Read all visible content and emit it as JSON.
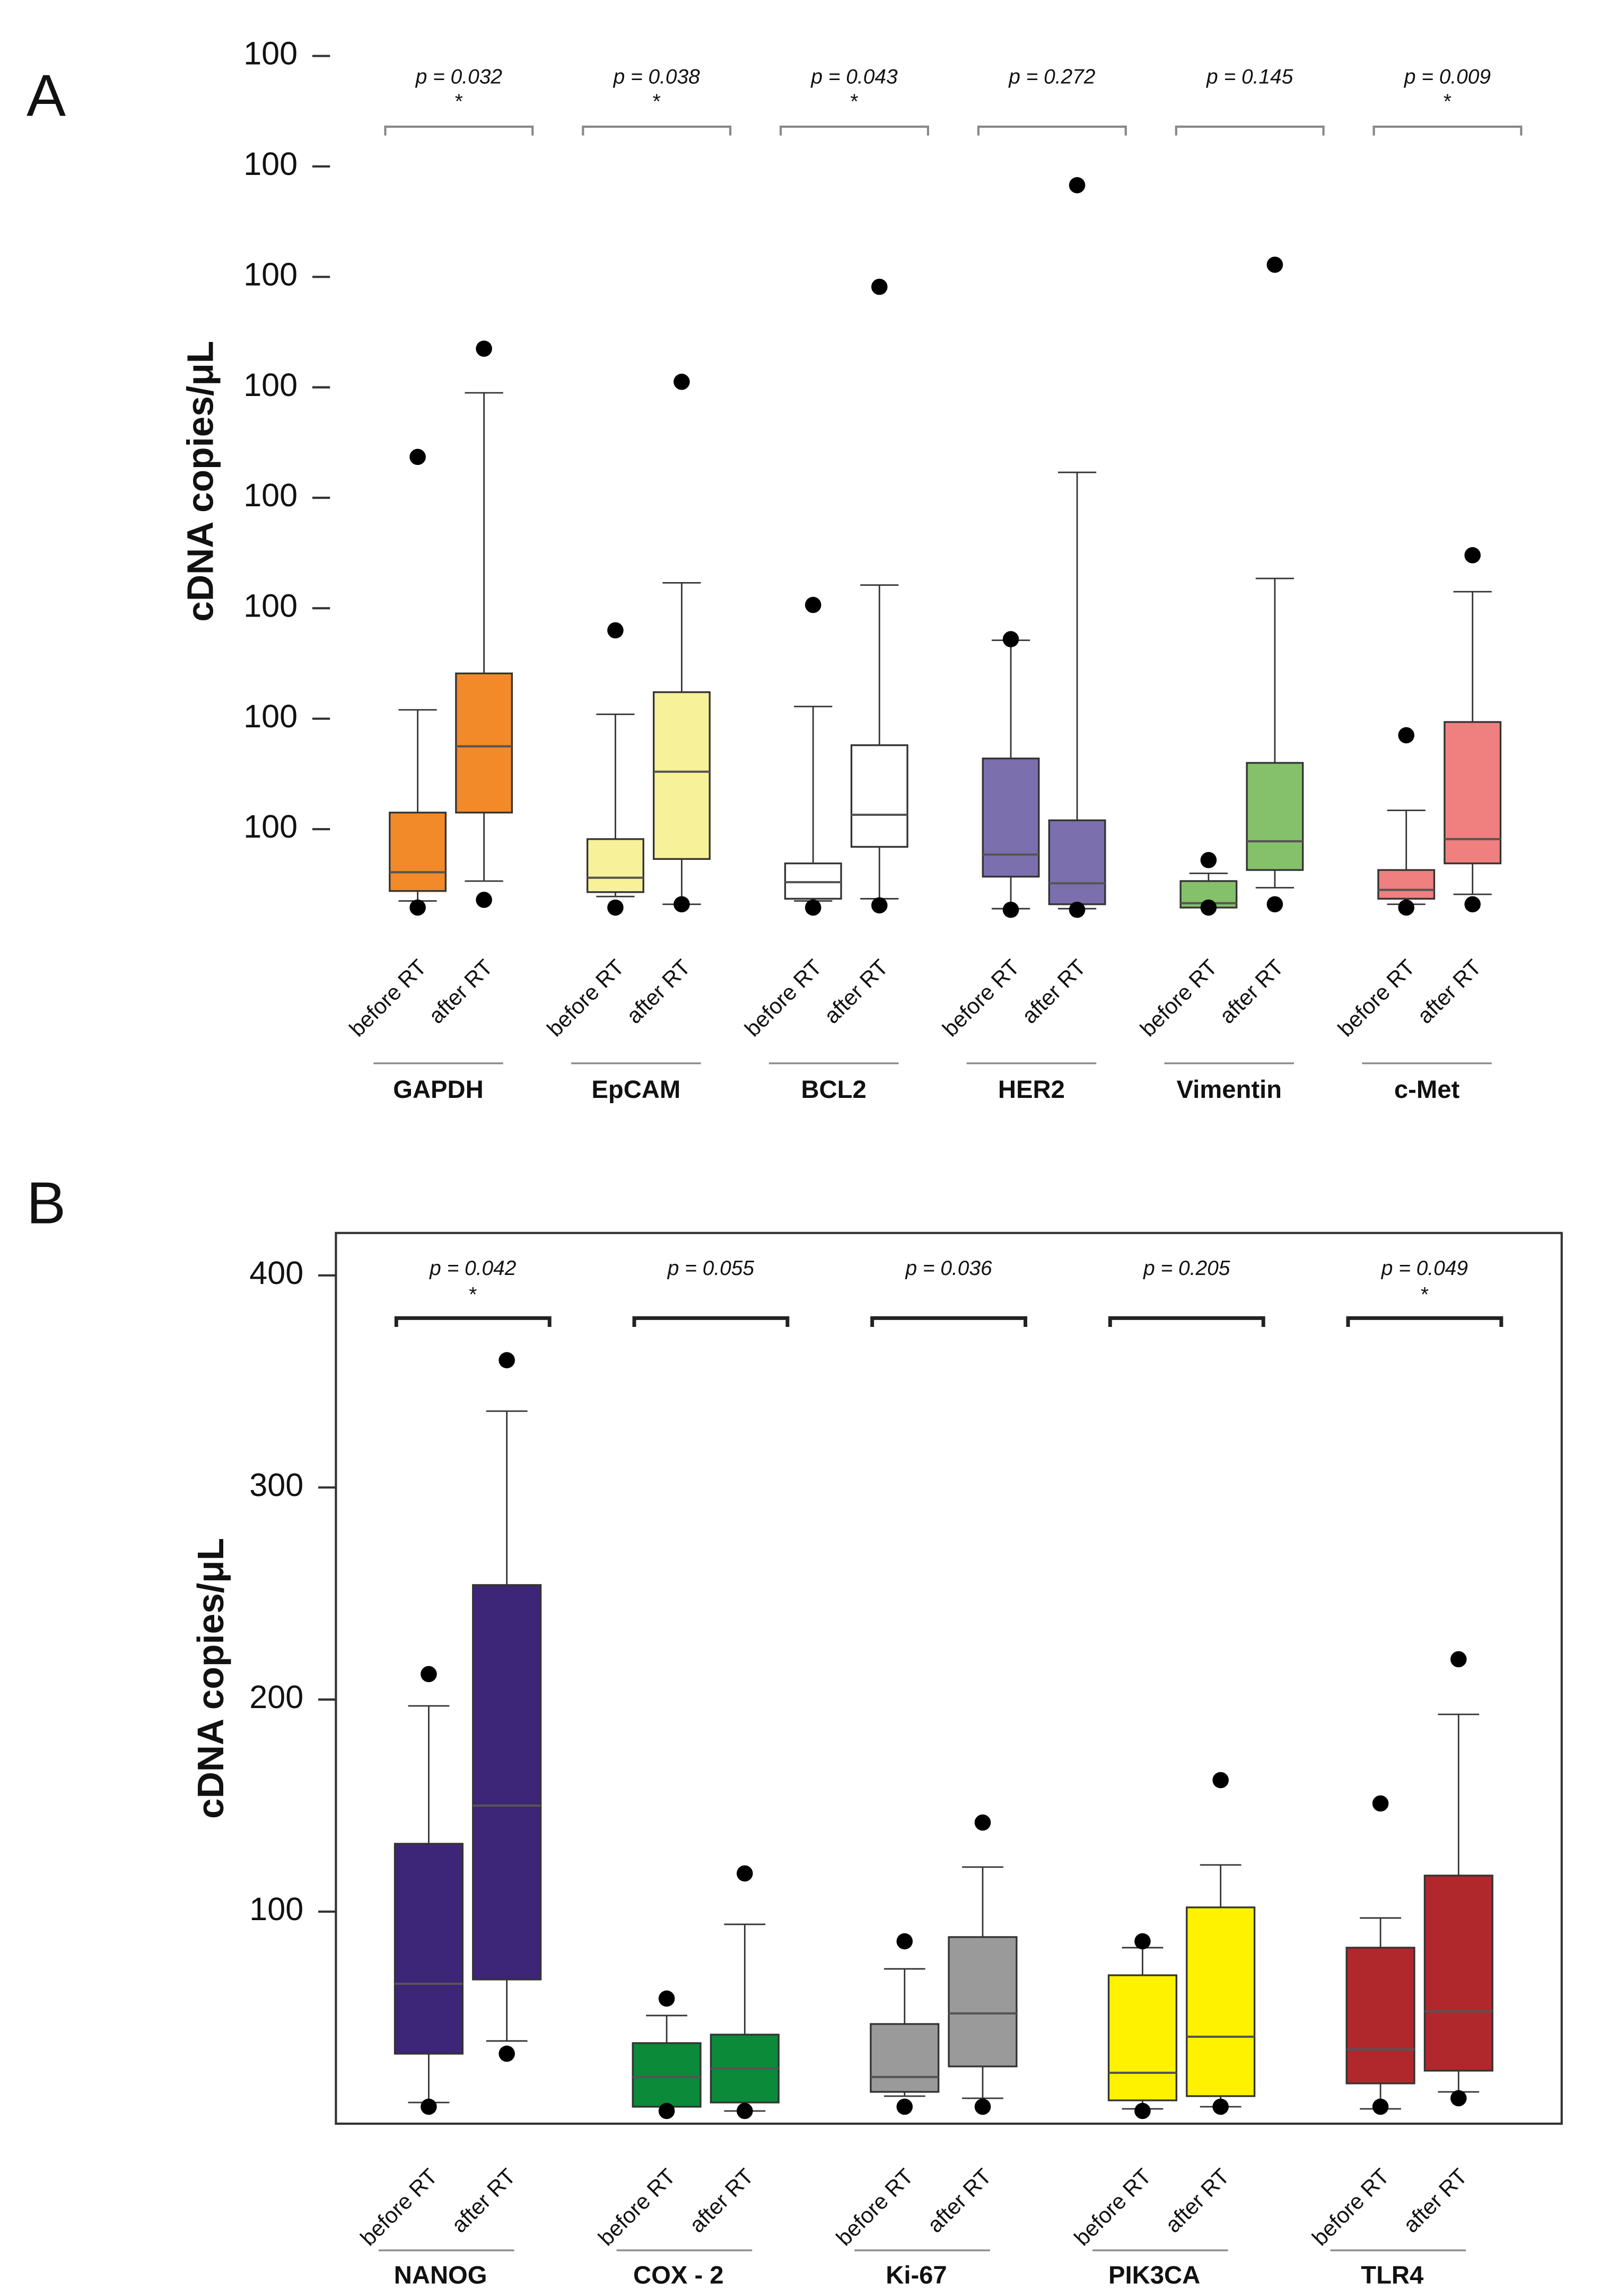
{
  "chart_data": [
    {
      "type": "box",
      "panel": "A",
      "y_label": "cDNA copies/μL",
      "ylim": [
        0.2,
        8.1
      ],
      "yticks": [
        {
          "value": 1,
          "label": "100"
        },
        {
          "value": 2,
          "label": "100"
        },
        {
          "value": 3,
          "label": "100"
        },
        {
          "value": 4,
          "label": "100"
        },
        {
          "value": 5,
          "label": "100"
        },
        {
          "value": 6,
          "label": "100"
        },
        {
          "value": 7,
          "label": "100"
        },
        {
          "value": 8,
          "label": "100"
        }
      ],
      "groups": [
        {
          "name": "GAPDH",
          "color": "#f28a2a",
          "p_value": "p = 0.032",
          "significance": "*",
          "boxes": [
            {
              "name": "before RT",
              "whisker_low": 0.35,
              "q1": 0.44,
              "median": 0.61,
              "q3": 1.15,
              "whisker_high": 2.08,
              "outliers": [
                4.37,
                0.29
              ]
            },
            {
              "name": "after RT",
              "whisker_low": 0.53,
              "q1": 1.15,
              "median": 1.75,
              "q3": 2.41,
              "whisker_high": 4.95,
              "outliers": [
                5.35,
                0.36
              ]
            }
          ]
        },
        {
          "name": "EpCAM",
          "color": "#f7f29a",
          "p_value": "p = 0.038",
          "significance": "*",
          "boxes": [
            {
              "name": "before RT",
              "whisker_low": 0.39,
              "q1": 0.43,
              "median": 0.56,
              "q3": 0.91,
              "whisker_high": 2.04,
              "outliers": [
                2.8,
                0.29
              ]
            },
            {
              "name": "after RT",
              "whisker_low": 0.32,
              "q1": 0.73,
              "median": 1.52,
              "q3": 2.24,
              "whisker_high": 3.23,
              "outliers": [
                5.05,
                0.32
              ]
            }
          ]
        },
        {
          "name": "BCL2",
          "color": "#ffffff",
          "p_value": "p = 0.043",
          "significance": "*",
          "boxes": [
            {
              "name": "before RT",
              "whisker_low": 0.35,
              "q1": 0.37,
              "median": 0.52,
              "q3": 0.69,
              "whisker_high": 2.11,
              "outliers": [
                3.03,
                0.29
              ]
            },
            {
              "name": "after RT",
              "whisker_low": 0.37,
              "q1": 0.84,
              "median": 1.13,
              "q3": 1.76,
              "whisker_high": 3.21,
              "outliers": [
                5.91,
                0.31
              ]
            }
          ]
        },
        {
          "name": "HER2",
          "color": "#7b6fad",
          "p_value": "p = 0.272",
          "boxes": [
            {
              "name": "before RT",
              "whisker_low": 0.28,
              "q1": 0.57,
              "median": 0.77,
              "q3": 1.64,
              "whisker_high": 2.71,
              "outliers": [
                2.72,
                0.27
              ]
            },
            {
              "name": "after RT",
              "whisker_low": 0.28,
              "q1": 0.32,
              "median": 0.51,
              "q3": 1.08,
              "whisker_high": 4.23,
              "outliers": [
                6.83,
                0.27
              ]
            }
          ]
        },
        {
          "name": "Vimentin",
          "color": "#85c06a",
          "p_value": "p = 0.145",
          "boxes": [
            {
              "name": "before RT",
              "whisker_low": 0.29,
              "q1": 0.29,
              "median": 0.33,
              "q3": 0.53,
              "whisker_high": 0.6,
              "outliers": [
                0.72,
                0.29
              ]
            },
            {
              "name": "after RT",
              "whisker_low": 0.47,
              "q1": 0.63,
              "median": 0.89,
              "q3": 1.6,
              "whisker_high": 3.27,
              "outliers": [
                6.11,
                0.32
              ]
            }
          ]
        },
        {
          "name": "c-Met",
          "color": "#f08080",
          "p_value": "p = 0.009",
          "significance": "*",
          "boxes": [
            {
              "name": "before RT",
              "whisker_low": 0.32,
              "q1": 0.37,
              "median": 0.45,
              "q3": 0.63,
              "whisker_high": 1.17,
              "outliers": [
                1.85,
                0.29
              ]
            },
            {
              "name": "after RT",
              "whisker_low": 0.41,
              "q1": 0.69,
              "median": 0.91,
              "q3": 1.97,
              "whisker_high": 3.15,
              "outliers": [
                3.48,
                0.32
              ]
            }
          ]
        }
      ]
    },
    {
      "type": "box",
      "panel": "B",
      "y_label": "cDNA copies/μL",
      "ylim": [
        0,
        420
      ],
      "yticks": [
        100,
        200,
        300,
        400
      ],
      "groups": [
        {
          "name": "NANOG",
          "color": "#3d2577",
          "p_value": "p = 0.042",
          "significance": "*",
          "boxes": [
            {
              "name": "before RT",
              "whisker_low": 10,
              "q1": 33,
              "median": 66,
              "q3": 132,
              "whisker_high": 197,
              "outliers": [
                212,
                8
              ]
            },
            {
              "name": "after RT",
              "whisker_low": 39,
              "q1": 68,
              "median": 150,
              "q3": 254,
              "whisker_high": 336,
              "outliers": [
                360,
                33
              ]
            }
          ]
        },
        {
          "name": "COX - 2",
          "color": "#0b8a3a",
          "p_value": "p = 0.055",
          "boxes": [
            {
              "name": "before RT",
              "whisker_low": 8,
              "q1": 8,
              "median": 22,
              "q3": 38,
              "whisker_high": 51,
              "outliers": [
                59,
                6
              ]
            },
            {
              "name": "after RT",
              "whisker_low": 6,
              "q1": 10,
              "median": 26,
              "q3": 42,
              "whisker_high": 94,
              "outliers": [
                118,
                6
              ]
            }
          ]
        },
        {
          "name": "Ki-67",
          "color": "#9a9a9a",
          "p_value": "p = 0.036",
          "boxes": [
            {
              "name": "before RT",
              "whisker_low": 13,
              "q1": 15,
              "median": 22,
              "q3": 47,
              "whisker_high": 73,
              "outliers": [
                86,
                8
              ]
            },
            {
              "name": "after RT",
              "whisker_low": 12,
              "q1": 27,
              "median": 52,
              "q3": 88,
              "whisker_high": 121,
              "outliers": [
                142,
                8
              ]
            }
          ]
        },
        {
          "name": "PIK3CA",
          "color": "#fff200",
          "p_value": "p = 0.205",
          "boxes": [
            {
              "name": "before RT",
              "whisker_low": 7,
              "q1": 11,
              "median": 24,
              "q3": 70,
              "whisker_high": 83,
              "outliers": [
                86,
                6
              ]
            },
            {
              "name": "after RT",
              "whisker_low": 8,
              "q1": 13,
              "median": 41,
              "q3": 102,
              "whisker_high": 122,
              "outliers": [
                162,
                8
              ]
            }
          ]
        },
        {
          "name": "TLR4",
          "color": "#b0282c",
          "p_value": "p = 0.049",
          "significance": "*",
          "boxes": [
            {
              "name": "before RT",
              "whisker_low": 7,
              "q1": 19,
              "median": 35,
              "q3": 83,
              "whisker_high": 97,
              "outliers": [
                151,
                8
              ]
            },
            {
              "name": "after RT",
              "whisker_low": 15,
              "q1": 25,
              "median": 53,
              "q3": 117,
              "whisker_high": 193,
              "outliers": [
                219,
                12
              ]
            }
          ]
        }
      ]
    }
  ]
}
